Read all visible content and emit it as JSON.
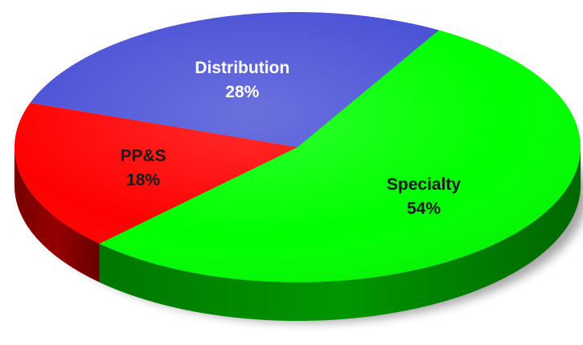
{
  "chart_data": {
    "type": "pie",
    "style": "3d",
    "title": "",
    "slices": [
      {
        "label": "Specialty",
        "value_label": "54%",
        "value": 54,
        "color": "#00ff00",
        "text_color": "#1a1a1a"
      },
      {
        "label": "PP&S",
        "value_label": "18%",
        "value": 18,
        "color": "#ff0000",
        "text_color": "#1a1a1a"
      },
      {
        "label": "Distribution",
        "value_label": "28%",
        "value": 28,
        "color": "#4a52d6",
        "text_color": "#ffffff"
      }
    ]
  }
}
